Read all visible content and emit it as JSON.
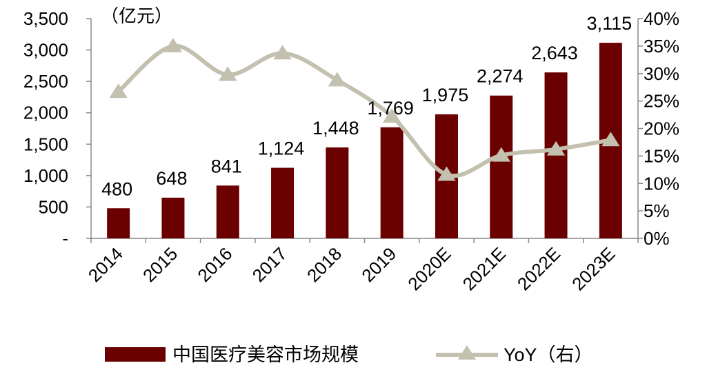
{
  "chart_data": {
    "type": "bar",
    "title": "",
    "xlabel": "",
    "ylabel": "（亿元）",
    "y2label": "",
    "categories": [
      "2014",
      "2015",
      "2016",
      "2017",
      "2018",
      "2019",
      "2020E",
      "2021E",
      "2022E",
      "2023E"
    ],
    "ylim": [
      0,
      3500
    ],
    "y_ticks": [
      "-",
      "500",
      "1,000",
      "1,500",
      "2,000",
      "2,500",
      "3,000",
      "3,500"
    ],
    "y2lim": [
      0,
      40
    ],
    "y2_ticks": [
      "0%",
      "5%",
      "10%",
      "15%",
      "20%",
      "25%",
      "30%",
      "35%",
      "40%"
    ],
    "legend_position": "bottom",
    "grid": false,
    "series": [
      {
        "name": "中国医疗美容市场规模",
        "type": "bar",
        "axis": "left",
        "color": "#6b0000",
        "values": [
          480,
          648,
          841,
          1124,
          1448,
          1769,
          1975,
          2274,
          2643,
          3115
        ],
        "labels": [
          "480",
          "648",
          "841",
          "1,124",
          "1,448",
          "1,769",
          "1,975",
          "2,274",
          "2,643",
          "3,115"
        ]
      },
      {
        "name": "YoY（右）",
        "type": "line",
        "axis": "right",
        "color": "#c3c0b0",
        "marker": "triangle",
        "values": [
          26.7,
          35.0,
          29.8,
          33.7,
          28.8,
          22.2,
          11.6,
          15.1,
          16.2,
          17.9
        ]
      }
    ]
  }
}
